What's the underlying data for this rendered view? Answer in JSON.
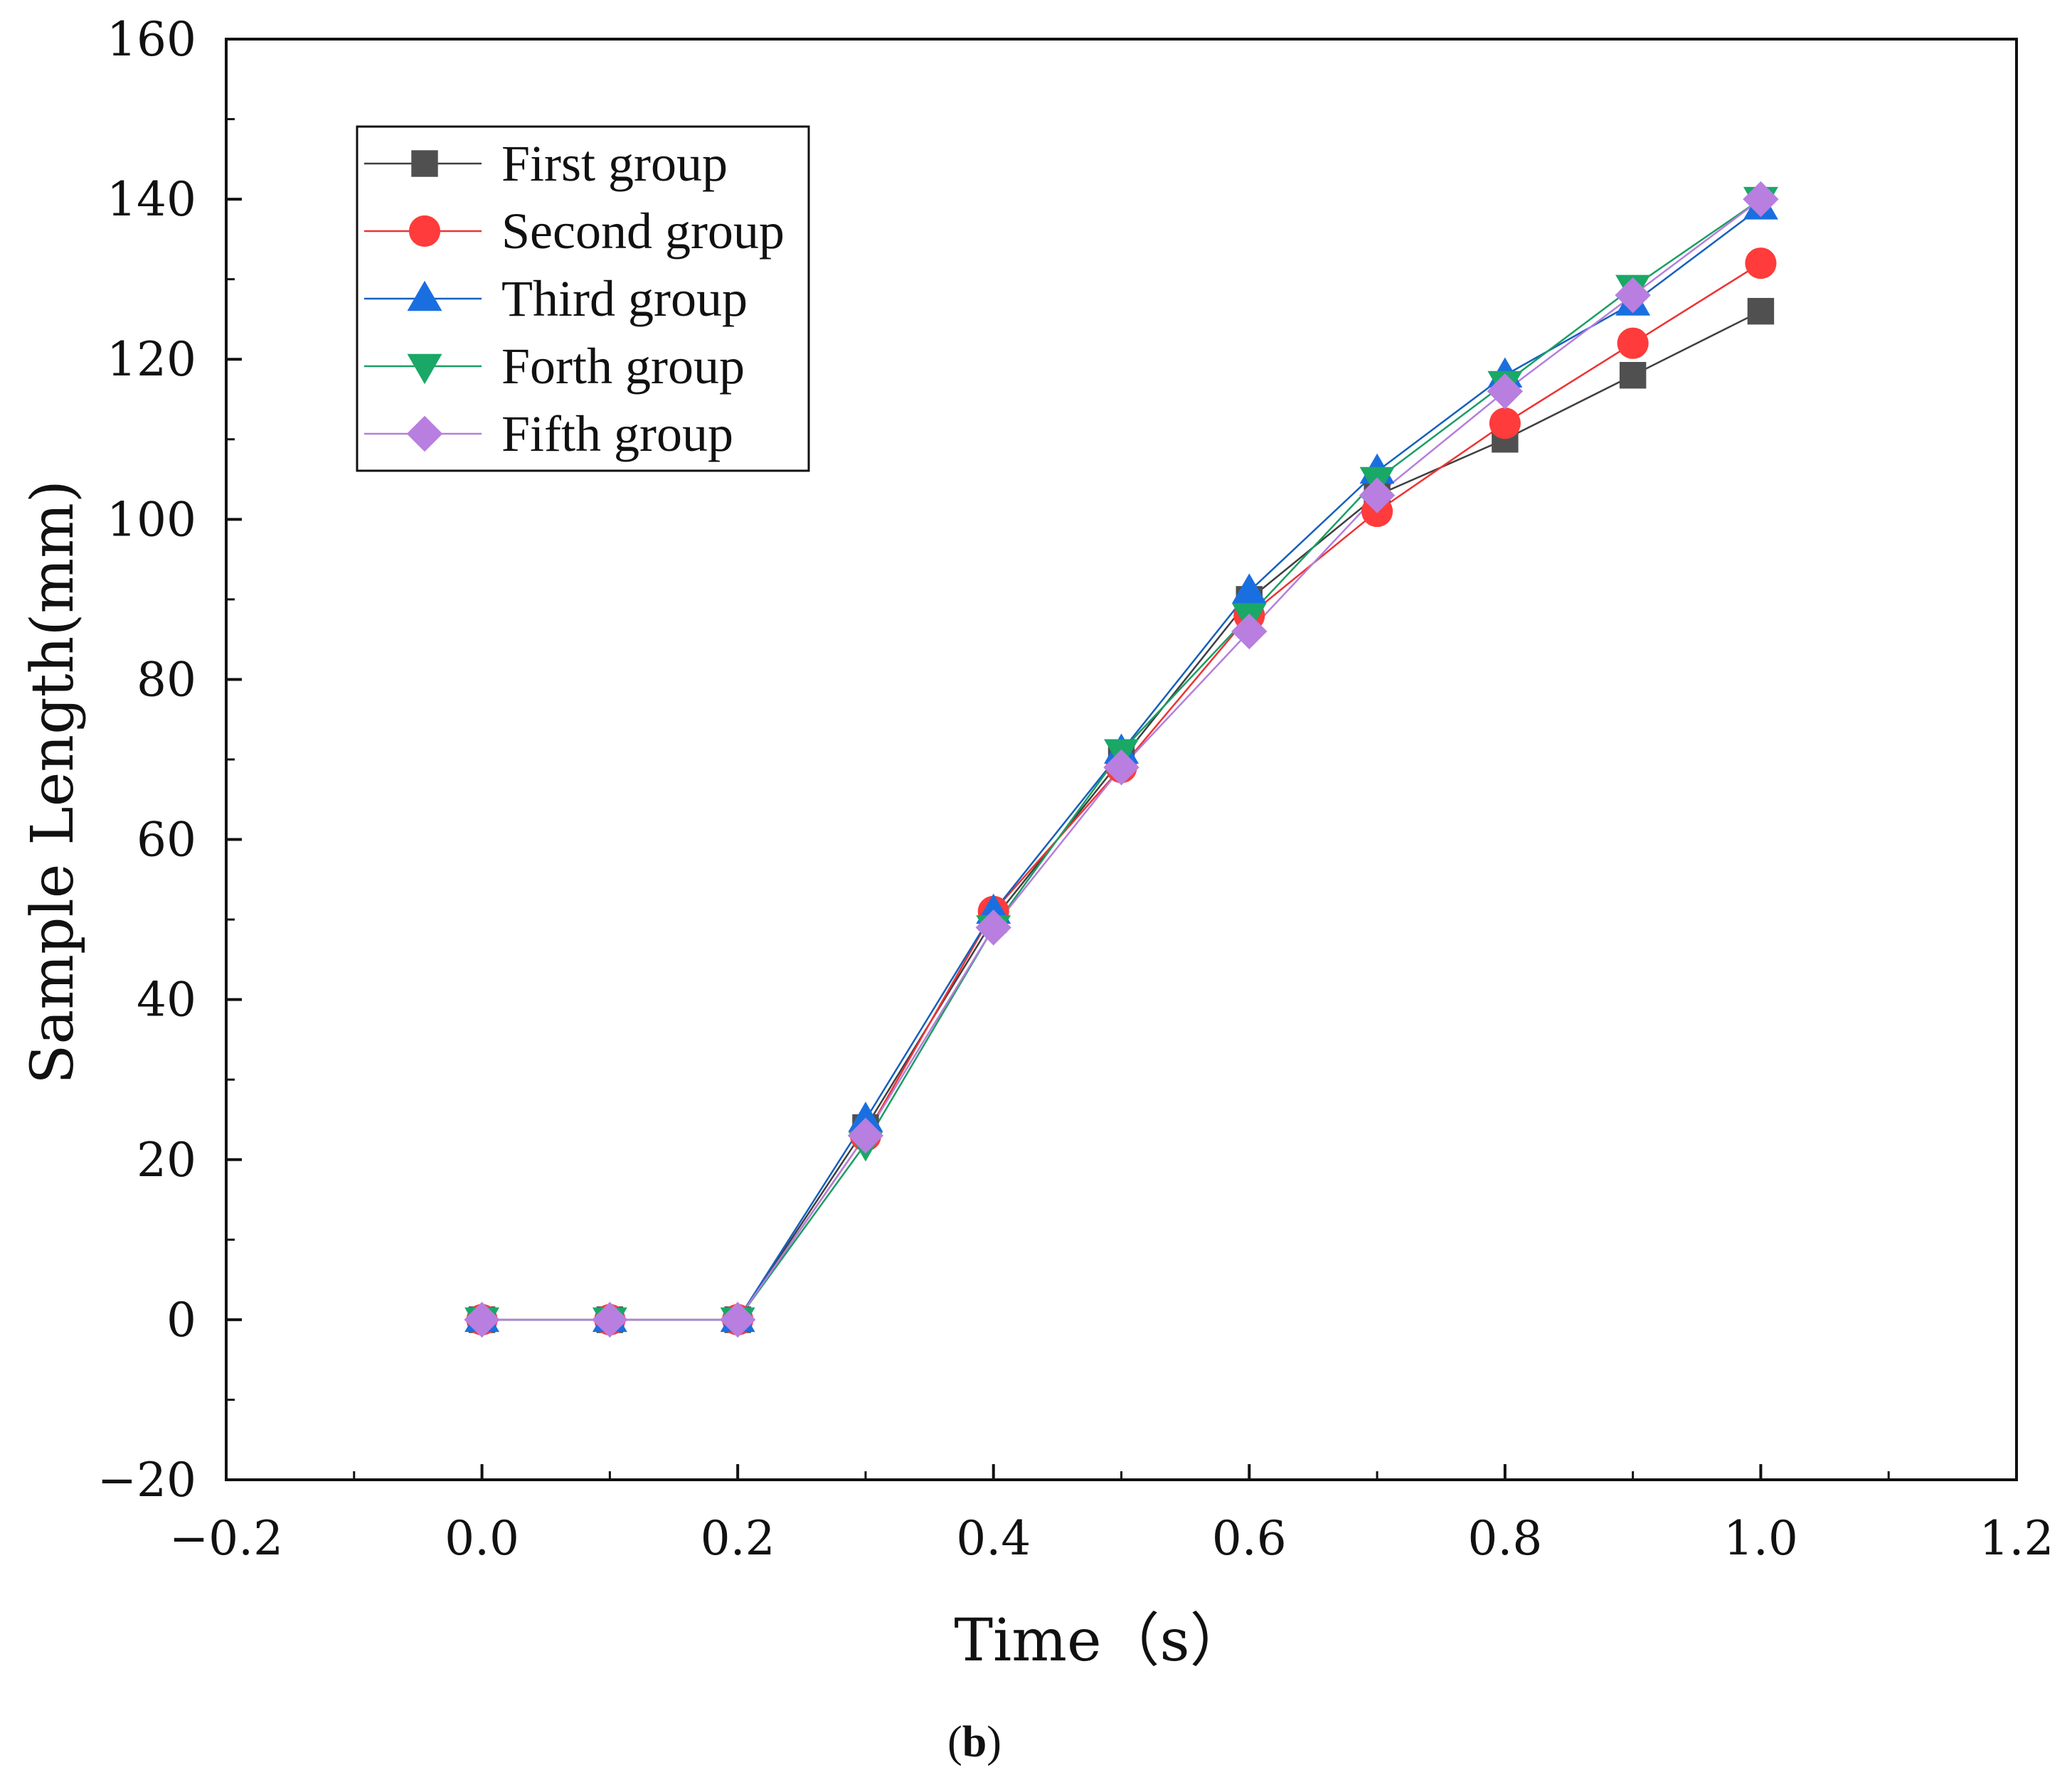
{
  "chart_data": {
    "type": "line",
    "title": "",
    "xlabel": "Time（s）",
    "ylabel": "Sample Length(mm)",
    "xlim": [
      -0.2,
      1.2
    ],
    "ylim": [
      -20,
      160
    ],
    "x_ticks": [
      "−0.2",
      "0.0",
      "0.2",
      "0.4",
      "0.6",
      "0.8",
      "1.0",
      "1.2"
    ],
    "y_ticks": [
      "−20",
      "0",
      "20",
      "40",
      "60",
      "80",
      "100",
      "120",
      "140",
      "160"
    ],
    "x_tick_values": [
      -0.2,
      0.0,
      0.2,
      0.4,
      0.6,
      0.8,
      1.0,
      1.2
    ],
    "y_tick_values": [
      -20,
      0,
      20,
      40,
      60,
      80,
      100,
      120,
      140,
      160
    ],
    "x": [
      0.0,
      0.1,
      0.2,
      0.3,
      0.4,
      0.5,
      0.6,
      0.7,
      0.8,
      0.9,
      1.0
    ],
    "legend_position": "top-left",
    "grid": false,
    "series": [
      {
        "name": "First group",
        "marker": "square",
        "color": "#404040",
        "marker_color": "#505050",
        "values": [
          0,
          0,
          0,
          24,
          50,
          70,
          90,
          103,
          110,
          118,
          126
        ]
      },
      {
        "name": "Second group",
        "marker": "circle",
        "color": "#ee3333",
        "marker_color": "#ff3b3b",
        "values": [
          0,
          0,
          0,
          23,
          51,
          69,
          88,
          101,
          112,
          122,
          132
        ]
      },
      {
        "name": "Third group",
        "marker": "triangle-up",
        "color": "#1560bd",
        "marker_color": "#1a6fe0",
        "values": [
          0,
          0,
          0,
          25,
          51,
          71,
          91,
          106,
          118,
          127,
          139
        ]
      },
      {
        "name": "Forth group",
        "marker": "triangle-down",
        "color": "#1a9e63",
        "marker_color": "#19a866",
        "values": [
          0,
          0,
          0,
          22,
          49,
          71,
          88,
          105,
          117,
          129,
          140
        ]
      },
      {
        "name": "Fifth group",
        "marker": "diamond",
        "color": "#b57edc",
        "marker_color": "#b87ee0",
        "values": [
          0,
          0,
          0,
          23,
          49,
          69,
          86,
          103,
          116,
          128,
          140
        ]
      }
    ]
  },
  "caption": {
    "open": "(",
    "label": "b",
    "close": ")"
  }
}
